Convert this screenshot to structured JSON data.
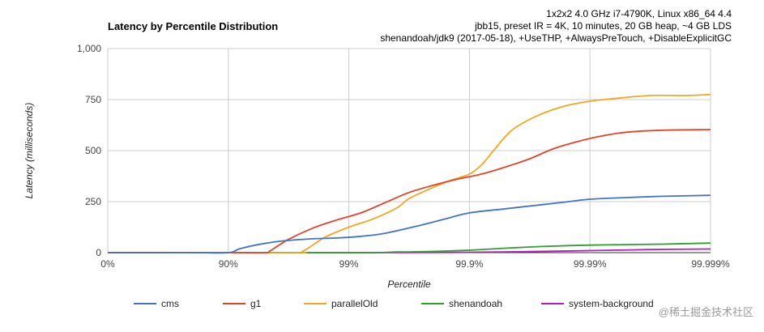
{
  "chart_data": {
    "type": "line",
    "title": "Latency by Percentile Distribution",
    "subtitle_lines": [
      "1x2x2 4.0 GHz i7-4790K, Linux x86_64 4.4",
      "jbb15, preset IR = 4K, 10 minutes, 20 GB heap, ~4 GB LDS",
      "shenandoah/jdk9 (2017-05-18), +UseTHP, +AlwaysPreTouch, +DisableExplicitGC"
    ],
    "xlabel": "Percentile",
    "ylabel": "Latency (milliseconds)",
    "x_scale": "percentile-nines",
    "xlim": [
      0,
      5
    ],
    "ylim": [
      0,
      1000
    ],
    "x_ticks": [
      {
        "value": 0,
        "label": "0%"
      },
      {
        "value": 1,
        "label": "90%"
      },
      {
        "value": 2,
        "label": "99%"
      },
      {
        "value": 3,
        "label": "99.9%"
      },
      {
        "value": 4,
        "label": "99.99%"
      },
      {
        "value": 5,
        "label": "99.999%"
      }
    ],
    "y_ticks": [
      {
        "value": 0,
        "label": "0"
      },
      {
        "value": 250,
        "label": "250"
      },
      {
        "value": 500,
        "label": "500"
      },
      {
        "value": 750,
        "label": "750"
      },
      {
        "value": 1000,
        "label": "1,000"
      }
    ],
    "grid": true,
    "legend_position": "bottom",
    "series": [
      {
        "name": "cms",
        "color": "#4472c4",
        "points": [
          [
            0,
            0
          ],
          [
            0.7,
            0
          ],
          [
            1.0,
            0
          ],
          [
            1.1,
            20
          ],
          [
            1.3,
            45
          ],
          [
            1.5,
            60
          ],
          [
            1.7,
            68
          ],
          [
            1.9,
            72
          ],
          [
            2.1,
            80
          ],
          [
            2.3,
            95
          ],
          [
            2.6,
            135
          ],
          [
            2.8,
            165
          ],
          [
            3.0,
            195
          ],
          [
            3.3,
            215
          ],
          [
            3.6,
            235
          ],
          [
            3.8,
            248
          ],
          [
            4.0,
            262
          ],
          [
            4.3,
            270
          ],
          [
            4.6,
            276
          ],
          [
            5.0,
            281
          ]
        ]
      },
      {
        "name": "g1",
        "color": "#e0442b",
        "points": [
          [
            0,
            0
          ],
          [
            1.0,
            0
          ],
          [
            1.3,
            0
          ],
          [
            1.35,
            10
          ],
          [
            1.5,
            65
          ],
          [
            1.7,
            120
          ],
          [
            1.9,
            160
          ],
          [
            2.1,
            195
          ],
          [
            2.3,
            245
          ],
          [
            2.5,
            295
          ],
          [
            2.7,
            330
          ],
          [
            2.9,
            360
          ],
          [
            3.1,
            385
          ],
          [
            3.3,
            420
          ],
          [
            3.5,
            460
          ],
          [
            3.7,
            510
          ],
          [
            3.9,
            545
          ],
          [
            4.1,
            572
          ],
          [
            4.3,
            590
          ],
          [
            4.6,
            600
          ],
          [
            5.0,
            603
          ]
        ]
      },
      {
        "name": "parallelOld",
        "color": "#f4a621",
        "points": [
          [
            0,
            0
          ],
          [
            1.5,
            0
          ],
          [
            1.62,
            8
          ],
          [
            1.8,
            75
          ],
          [
            2.0,
            125
          ],
          [
            2.2,
            165
          ],
          [
            2.4,
            220
          ],
          [
            2.5,
            265
          ],
          [
            2.7,
            320
          ],
          [
            2.85,
            355
          ],
          [
            3.0,
            385
          ],
          [
            3.1,
            430
          ],
          [
            3.2,
            500
          ],
          [
            3.3,
            570
          ],
          [
            3.4,
            620
          ],
          [
            3.6,
            680
          ],
          [
            3.8,
            720
          ],
          [
            4.0,
            742
          ],
          [
            4.2,
            755
          ],
          [
            4.5,
            770
          ],
          [
            4.8,
            770
          ],
          [
            5.0,
            775
          ]
        ]
      },
      {
        "name": "shenandoah",
        "color": "#2ca02c",
        "points": [
          [
            0,
            0
          ],
          [
            2.0,
            0
          ],
          [
            2.4,
            3
          ],
          [
            2.7,
            6
          ],
          [
            3.0,
            12
          ],
          [
            3.3,
            22
          ],
          [
            3.6,
            30
          ],
          [
            4.0,
            37
          ],
          [
            4.4,
            40
          ],
          [
            4.7,
            43
          ],
          [
            5.0,
            47
          ]
        ]
      },
      {
        "name": "system-background",
        "color": "#b41fb4",
        "points": [
          [
            0,
            0
          ],
          [
            2.3,
            0
          ],
          [
            3.0,
            2
          ],
          [
            3.5,
            5
          ],
          [
            4.0,
            10
          ],
          [
            4.5,
            15
          ],
          [
            5.0,
            18
          ]
        ]
      }
    ]
  },
  "watermark": "@稀土掘金技术社区"
}
